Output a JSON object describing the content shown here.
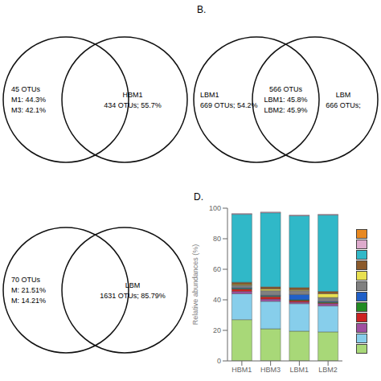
{
  "chart_data": [
    {
      "type": "venn",
      "color": "#111111",
      "annotations": [
        [
          "45 OTUs",
          "M1: 44.3%",
          "M3: 42.1%"
        ],
        [
          "HBM1",
          "434 OTUs; 55.7%"
        ]
      ]
    },
    {
      "type": "venn",
      "title": "B.",
      "color": "#111111",
      "annotations": [
        [
          "LBM1",
          "669 OTUs; 54.2%"
        ],
        [
          "566 OTUs",
          "LBM1: 45.8%",
          "LBM2: 45.9%"
        ],
        [
          "LBM",
          "666 OTUs;"
        ]
      ]
    },
    {
      "type": "venn",
      "color": "#111111",
      "annotations": [
        [
          "70 OTUs",
          "M: 21.51%",
          "M: 14.21%"
        ],
        [
          "LBM",
          "1631 OTUs; 85.79%"
        ]
      ]
    },
    {
      "type": "bar",
      "title": "D.",
      "stacked": true,
      "grid": false,
      "legend": "right",
      "categories": [
        "HBM1",
        "HBM3",
        "LBM1",
        "LBM2"
      ],
      "ylabel": "Relative abundances (%)",
      "ylim": [
        0,
        100
      ],
      "yticks": [
        0,
        20,
        40,
        60,
        80,
        100
      ],
      "series": [
        {
          "color": "#a8d878",
          "values": [
            27.0,
            21.0,
            19.5,
            19.0
          ]
        },
        {
          "color": "#87ceeb",
          "values": [
            17.0,
            18.0,
            18.0,
            17.0
          ]
        },
        {
          "color": "#a050a0",
          "values": [
            1.5,
            1.5,
            1.0,
            1.5
          ]
        },
        {
          "color": "#cc2222",
          "values": [
            1.5,
            1.5,
            1.0,
            0.5
          ]
        },
        {
          "color": "#228b22",
          "values": [
            0.5,
            0.5,
            0.5,
            0.5
          ]
        },
        {
          "color": "#2060c8",
          "values": [
            0.5,
            0.5,
            3.5,
            0.5
          ]
        },
        {
          "color": "#808080",
          "values": [
            1.5,
            3.0,
            2.5,
            2.5
          ]
        },
        {
          "color": "#e8e050",
          "values": [
            0.5,
            1.0,
            0.5,
            2.5
          ]
        },
        {
          "color": "#8b5a2b",
          "values": [
            1.5,
            1.5,
            1.5,
            1.5
          ]
        },
        {
          "color": "#30b8c8",
          "values": [
            44.5,
            48.5,
            47.0,
            50.0
          ]
        },
        {
          "color": "#ddaacc",
          "values": [
            0.5,
            0.5,
            0.5,
            0.5
          ]
        },
        {
          "color": "#e88820",
          "values": [
            0,
            0,
            0,
            0
          ]
        }
      ]
    }
  ]
}
